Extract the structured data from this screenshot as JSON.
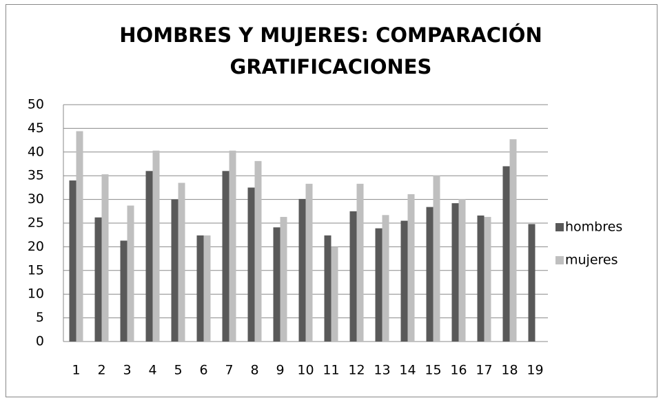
{
  "chart_data": {
    "type": "bar",
    "title": "HOMBRES Y MUJERES: COMPARACIÓN GRATIFICACIONES",
    "categories": [
      "1",
      "2",
      "3",
      "4",
      "5",
      "6",
      "7",
      "8",
      "9",
      "10",
      "11",
      "12",
      "13",
      "14",
      "15",
      "16",
      "17",
      "18",
      "19"
    ],
    "series": [
      {
        "name": "hombres",
        "color": "#595959",
        "values": [
          34,
          26.2,
          21.3,
          36,
          30,
          22.4,
          36,
          32.5,
          24.1,
          30.1,
          22.4,
          27.5,
          23.9,
          25.5,
          28.4,
          29.2,
          26.6,
          37,
          24.8
        ]
      },
      {
        "name": "mujeres",
        "color": "#bfbfbf",
        "values": [
          44.4,
          35.3,
          28.7,
          40.3,
          33.5,
          22.4,
          40.3,
          38.1,
          26.3,
          33.3,
          20,
          33.3,
          26.7,
          31.1,
          35.1,
          30.1,
          26.3,
          42.7,
          null
        ]
      }
    ],
    "ylim": [
      0,
      50
    ],
    "yticks": [
      0,
      5,
      10,
      15,
      20,
      25,
      30,
      35,
      40,
      45,
      50
    ],
    "grid": true,
    "legend": "right"
  }
}
